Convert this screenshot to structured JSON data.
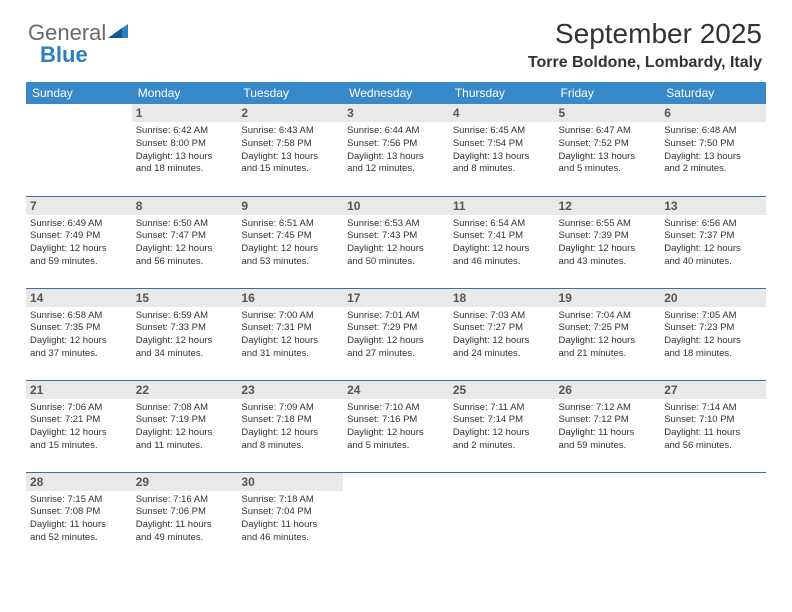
{
  "logo": {
    "part1": "General",
    "part2": "Blue"
  },
  "title": "September 2025",
  "location": "Torre Boldone, Lombardy, Italy",
  "colors": {
    "header_bg": "#3789c9",
    "header_text": "#ffffff",
    "daynum_bg": "#e9e9e9",
    "cell_border": "#3a6fa6",
    "logo_gray": "#6a6a6a",
    "logo_blue": "#2f7dbf"
  },
  "day_headers": [
    "Sunday",
    "Monday",
    "Tuesday",
    "Wednesday",
    "Thursday",
    "Friday",
    "Saturday"
  ],
  "weeks": [
    [
      null,
      {
        "n": "1",
        "sr": "Sunrise: 6:42 AM",
        "ss": "Sunset: 8:00 PM",
        "d1": "Daylight: 13 hours",
        "d2": "and 18 minutes."
      },
      {
        "n": "2",
        "sr": "Sunrise: 6:43 AM",
        "ss": "Sunset: 7:58 PM",
        "d1": "Daylight: 13 hours",
        "d2": "and 15 minutes."
      },
      {
        "n": "3",
        "sr": "Sunrise: 6:44 AM",
        "ss": "Sunset: 7:56 PM",
        "d1": "Daylight: 13 hours",
        "d2": "and 12 minutes."
      },
      {
        "n": "4",
        "sr": "Sunrise: 6:45 AM",
        "ss": "Sunset: 7:54 PM",
        "d1": "Daylight: 13 hours",
        "d2": "and 8 minutes."
      },
      {
        "n": "5",
        "sr": "Sunrise: 6:47 AM",
        "ss": "Sunset: 7:52 PM",
        "d1": "Daylight: 13 hours",
        "d2": "and 5 minutes."
      },
      {
        "n": "6",
        "sr": "Sunrise: 6:48 AM",
        "ss": "Sunset: 7:50 PM",
        "d1": "Daylight: 13 hours",
        "d2": "and 2 minutes."
      }
    ],
    [
      {
        "n": "7",
        "sr": "Sunrise: 6:49 AM",
        "ss": "Sunset: 7:49 PM",
        "d1": "Daylight: 12 hours",
        "d2": "and 59 minutes."
      },
      {
        "n": "8",
        "sr": "Sunrise: 6:50 AM",
        "ss": "Sunset: 7:47 PM",
        "d1": "Daylight: 12 hours",
        "d2": "and 56 minutes."
      },
      {
        "n": "9",
        "sr": "Sunrise: 6:51 AM",
        "ss": "Sunset: 7:45 PM",
        "d1": "Daylight: 12 hours",
        "d2": "and 53 minutes."
      },
      {
        "n": "10",
        "sr": "Sunrise: 6:53 AM",
        "ss": "Sunset: 7:43 PM",
        "d1": "Daylight: 12 hours",
        "d2": "and 50 minutes."
      },
      {
        "n": "11",
        "sr": "Sunrise: 6:54 AM",
        "ss": "Sunset: 7:41 PM",
        "d1": "Daylight: 12 hours",
        "d2": "and 46 minutes."
      },
      {
        "n": "12",
        "sr": "Sunrise: 6:55 AM",
        "ss": "Sunset: 7:39 PM",
        "d1": "Daylight: 12 hours",
        "d2": "and 43 minutes."
      },
      {
        "n": "13",
        "sr": "Sunrise: 6:56 AM",
        "ss": "Sunset: 7:37 PM",
        "d1": "Daylight: 12 hours",
        "d2": "and 40 minutes."
      }
    ],
    [
      {
        "n": "14",
        "sr": "Sunrise: 6:58 AM",
        "ss": "Sunset: 7:35 PM",
        "d1": "Daylight: 12 hours",
        "d2": "and 37 minutes."
      },
      {
        "n": "15",
        "sr": "Sunrise: 6:59 AM",
        "ss": "Sunset: 7:33 PM",
        "d1": "Daylight: 12 hours",
        "d2": "and 34 minutes."
      },
      {
        "n": "16",
        "sr": "Sunrise: 7:00 AM",
        "ss": "Sunset: 7:31 PM",
        "d1": "Daylight: 12 hours",
        "d2": "and 31 minutes."
      },
      {
        "n": "17",
        "sr": "Sunrise: 7:01 AM",
        "ss": "Sunset: 7:29 PM",
        "d1": "Daylight: 12 hours",
        "d2": "and 27 minutes."
      },
      {
        "n": "18",
        "sr": "Sunrise: 7:03 AM",
        "ss": "Sunset: 7:27 PM",
        "d1": "Daylight: 12 hours",
        "d2": "and 24 minutes."
      },
      {
        "n": "19",
        "sr": "Sunrise: 7:04 AM",
        "ss": "Sunset: 7:25 PM",
        "d1": "Daylight: 12 hours",
        "d2": "and 21 minutes."
      },
      {
        "n": "20",
        "sr": "Sunrise: 7:05 AM",
        "ss": "Sunset: 7:23 PM",
        "d1": "Daylight: 12 hours",
        "d2": "and 18 minutes."
      }
    ],
    [
      {
        "n": "21",
        "sr": "Sunrise: 7:06 AM",
        "ss": "Sunset: 7:21 PM",
        "d1": "Daylight: 12 hours",
        "d2": "and 15 minutes."
      },
      {
        "n": "22",
        "sr": "Sunrise: 7:08 AM",
        "ss": "Sunset: 7:19 PM",
        "d1": "Daylight: 12 hours",
        "d2": "and 11 minutes."
      },
      {
        "n": "23",
        "sr": "Sunrise: 7:09 AM",
        "ss": "Sunset: 7:18 PM",
        "d1": "Daylight: 12 hours",
        "d2": "and 8 minutes."
      },
      {
        "n": "24",
        "sr": "Sunrise: 7:10 AM",
        "ss": "Sunset: 7:16 PM",
        "d1": "Daylight: 12 hours",
        "d2": "and 5 minutes."
      },
      {
        "n": "25",
        "sr": "Sunrise: 7:11 AM",
        "ss": "Sunset: 7:14 PM",
        "d1": "Daylight: 12 hours",
        "d2": "and 2 minutes."
      },
      {
        "n": "26",
        "sr": "Sunrise: 7:12 AM",
        "ss": "Sunset: 7:12 PM",
        "d1": "Daylight: 11 hours",
        "d2": "and 59 minutes."
      },
      {
        "n": "27",
        "sr": "Sunrise: 7:14 AM",
        "ss": "Sunset: 7:10 PM",
        "d1": "Daylight: 11 hours",
        "d2": "and 56 minutes."
      }
    ],
    [
      {
        "n": "28",
        "sr": "Sunrise: 7:15 AM",
        "ss": "Sunset: 7:08 PM",
        "d1": "Daylight: 11 hours",
        "d2": "and 52 minutes."
      },
      {
        "n": "29",
        "sr": "Sunrise: 7:16 AM",
        "ss": "Sunset: 7:06 PM",
        "d1": "Daylight: 11 hours",
        "d2": "and 49 minutes."
      },
      {
        "n": "30",
        "sr": "Sunrise: 7:18 AM",
        "ss": "Sunset: 7:04 PM",
        "d1": "Daylight: 11 hours",
        "d2": "and 46 minutes."
      },
      null,
      null,
      null,
      null
    ]
  ]
}
